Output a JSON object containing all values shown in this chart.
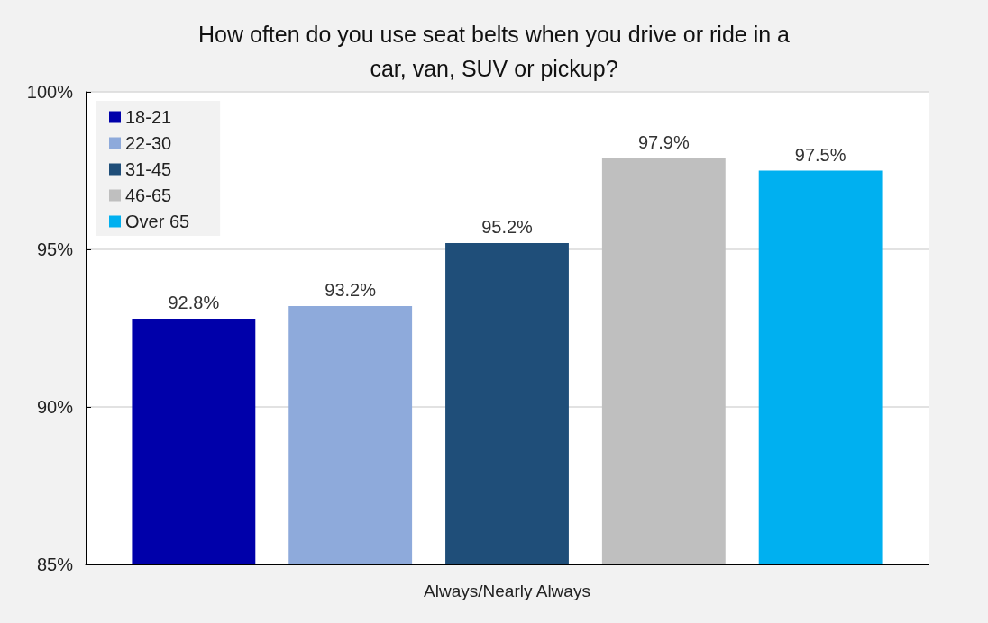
{
  "chart_data": {
    "type": "bar",
    "title": "How often do you use seat belts when you drive or ride in a\ncar, van, SUV or pickup?",
    "categories": [
      "Always/Nearly Always"
    ],
    "series": [
      {
        "name": "18-21",
        "color": "#0000aa",
        "values": [
          92.8
        ],
        "value_labels": [
          "92.8%"
        ]
      },
      {
        "name": "22-30",
        "color": "#8eaadb",
        "values": [
          93.2
        ],
        "value_labels": [
          "93.2%"
        ]
      },
      {
        "name": "31-45",
        "color": "#1f4e79",
        "values": [
          95.2
        ],
        "value_labels": [
          "95.2%"
        ]
      },
      {
        "name": "46-65",
        "color": "#bfbfbf",
        "values": [
          97.9
        ],
        "value_labels": [
          "97.9%"
        ]
      },
      {
        "name": "Over 65",
        "color": "#00b0f0",
        "values": [
          97.5
        ],
        "value_labels": [
          "97.5%"
        ]
      }
    ],
    "ylim": [
      85,
      100
    ],
    "yticks": [
      {
        "value": 85,
        "label": "85%"
      },
      {
        "value": 90,
        "label": "90%"
      },
      {
        "value": 95,
        "label": "95%"
      },
      {
        "value": 100,
        "label": "100%"
      }
    ],
    "grid": "y",
    "legend": "top left"
  }
}
